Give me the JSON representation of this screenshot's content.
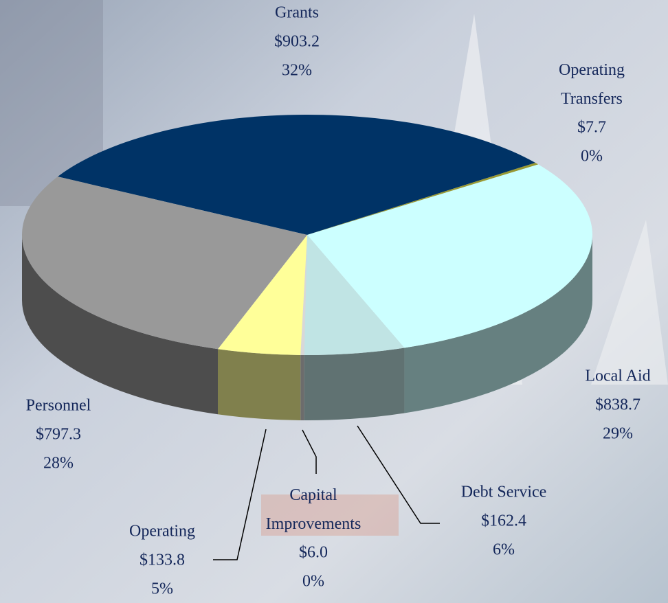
{
  "chart_data": {
    "type": "pie",
    "categories": [
      "Grants",
      "Operating\nTransfers",
      "Local Aid",
      "Debt Service",
      "Capital\nImprovements",
      "Operating",
      "Personnel"
    ],
    "values": [
      903.2,
      7.7,
      838.7,
      162.4,
      6.0,
      133.8,
      797.3
    ],
    "value_labels": [
      "$903.2",
      "$7.7",
      "$838.7",
      "$162.4",
      "$6.0",
      "$133.8",
      "$797.3"
    ],
    "percent_labels": [
      "32%",
      "0%",
      "29%",
      "6%",
      "0%",
      "5%",
      "28%"
    ],
    "colors": [
      "#003366",
      "#999933",
      "#ccffff",
      "#c0e4e4",
      "#d8d8d8",
      "#ffff99",
      "#999999"
    ]
  }
}
